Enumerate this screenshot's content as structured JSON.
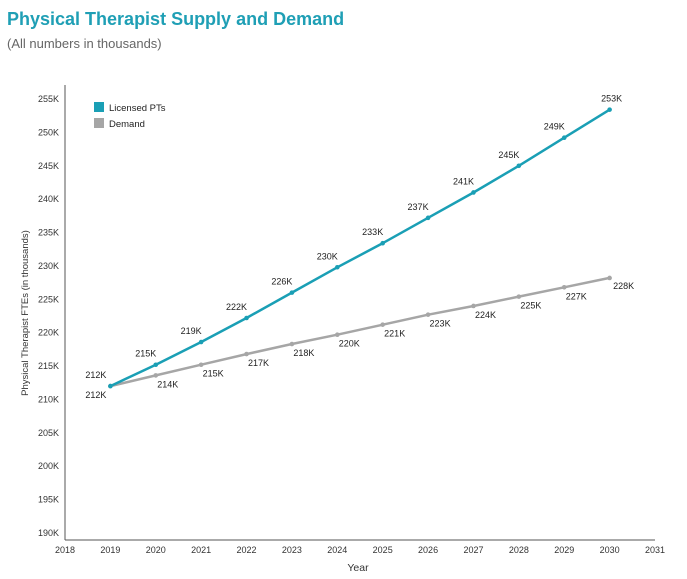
{
  "header": {
    "title": "Physical Therapist Supply and Demand",
    "subtitle": "(All numbers in thousands)"
  },
  "colors": {
    "supply": "#1a9fb5",
    "demand": "#a6a6a6",
    "title": "#1f9fb5"
  },
  "chart_data": {
    "type": "line",
    "title": "Physical Therapist Supply and Demand",
    "subtitle": "(All numbers in thousands)",
    "xlabel": "Year",
    "ylabel": "Physical Therapist FTEs (in thousands)",
    "x_ticks": [
      "2018",
      "2019",
      "2020",
      "2021",
      "2022",
      "2023",
      "2024",
      "2025",
      "2026",
      "2027",
      "2028",
      "2029",
      "2030",
      "2031"
    ],
    "xlim": [
      2018,
      2031
    ],
    "y_ticks": [
      "190K",
      "195K",
      "200K",
      "205K",
      "210K",
      "215K",
      "220K",
      "225K",
      "230K",
      "235K",
      "240K",
      "245K",
      "250K",
      "255K"
    ],
    "ylim": [
      190,
      255
    ],
    "legend_position": "top-left",
    "x": [
      2019,
      2020,
      2021,
      2022,
      2023,
      2024,
      2025,
      2026,
      2027,
      2028,
      2029,
      2030
    ],
    "series": [
      {
        "name": "Licensed PTs",
        "color": "#1a9fb5",
        "values": [
          212,
          215.2,
          218.6,
          222.2,
          226,
          229.8,
          233.4,
          237.2,
          241,
          245,
          249.2,
          253.4
        ],
        "labels": [
          "212K",
          "215K",
          "219K",
          "222K",
          "226K",
          "230K",
          "233K",
          "237K",
          "241K",
          "245K",
          "249K",
          "253K"
        ]
      },
      {
        "name": "Demand",
        "color": "#a6a6a6",
        "values": [
          212,
          213.6,
          215.2,
          216.8,
          218.3,
          219.7,
          221.2,
          222.7,
          224,
          225.4,
          226.8,
          228.2
        ],
        "labels": [
          "212K",
          "214K",
          "215K",
          "217K",
          "218K",
          "220K",
          "221K",
          "223K",
          "224K",
          "225K",
          "227K",
          "228K"
        ]
      }
    ]
  }
}
